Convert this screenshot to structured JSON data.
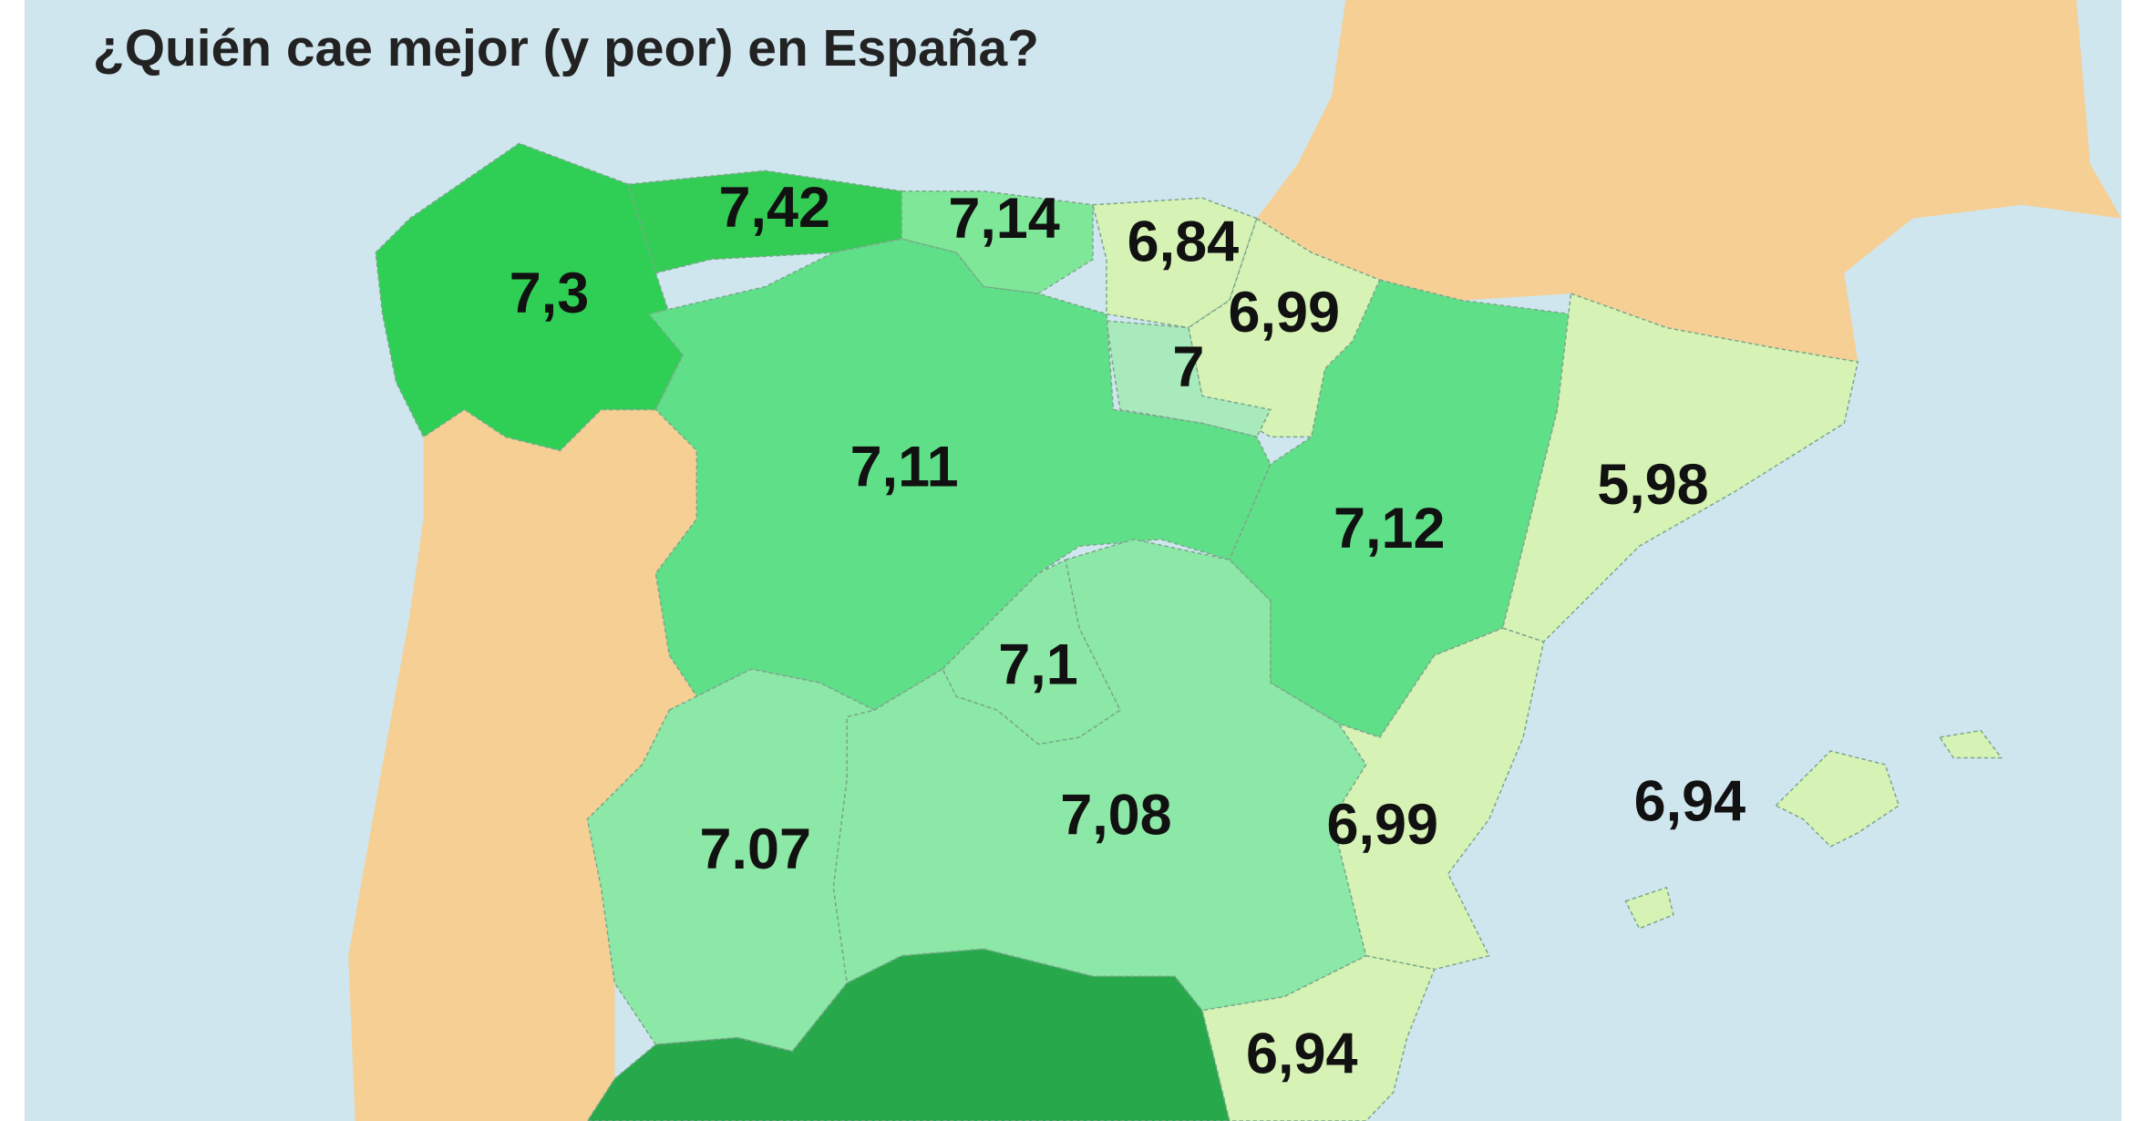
{
  "title": "¿Quién cae mejor (y peor) en España?",
  "regions": [
    {
      "label": "7,3"
    },
    {
      "label": "7,42"
    },
    {
      "label": "7,14"
    },
    {
      "label": "6,84"
    },
    {
      "label": "6,99"
    },
    {
      "label": "7"
    },
    {
      "label": "7,11"
    },
    {
      "label": "7,12"
    },
    {
      "label": "5,98"
    },
    {
      "label": "7,1"
    },
    {
      "label": "7,08"
    },
    {
      "label": "7.07"
    },
    {
      "label": "6,99"
    },
    {
      "label": "6,94"
    },
    {
      "label": "6,94"
    }
  ]
}
